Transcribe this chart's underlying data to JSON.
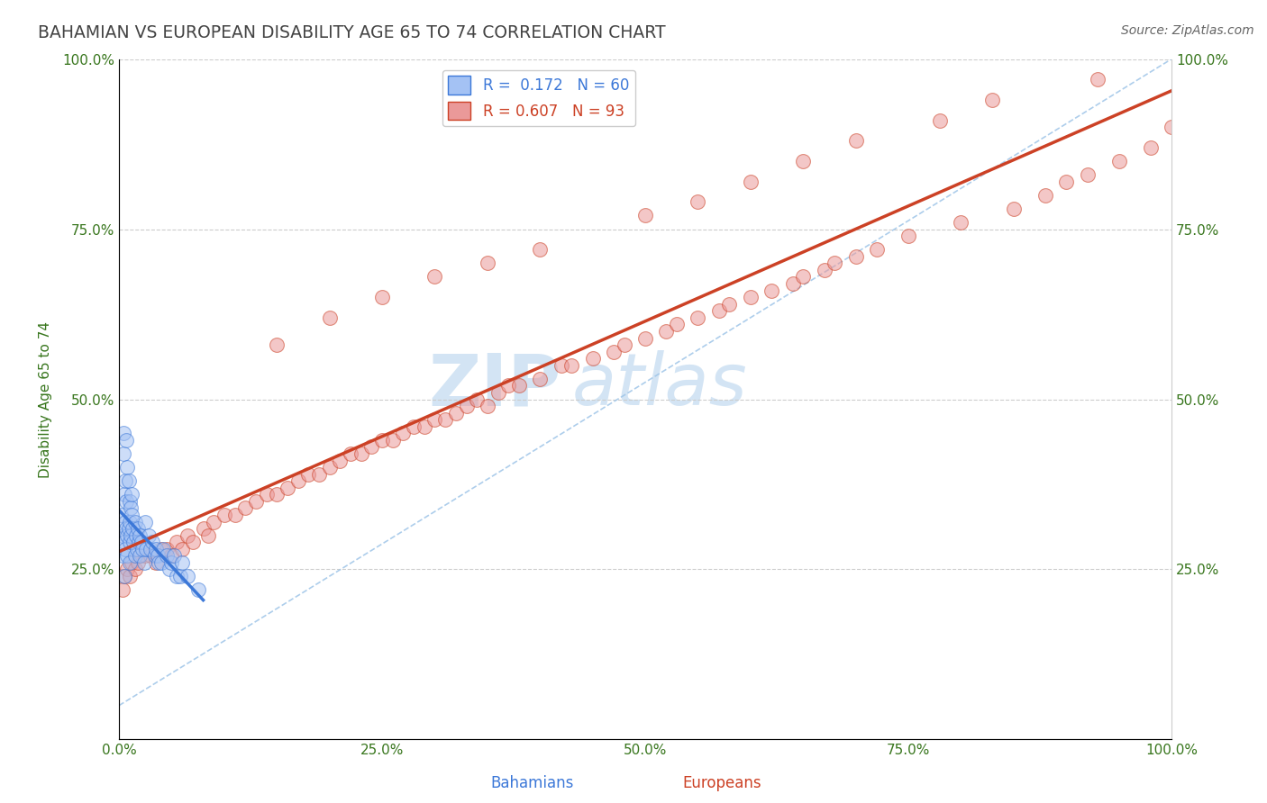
{
  "title": "BAHAMIAN VS EUROPEAN DISABILITY AGE 65 TO 74 CORRELATION CHART",
  "source": "Source: ZipAtlas.com",
  "ylabel": "Disability Age 65 to 74",
  "x_ticks": [
    0.0,
    25.0,
    50.0,
    75.0,
    100.0
  ],
  "x_tick_labels": [
    "0.0%",
    "25.0%",
    "50.0%",
    "75.0%",
    "100.0%"
  ],
  "y_ticks": [
    0.0,
    25.0,
    50.0,
    75.0,
    100.0
  ],
  "y_tick_labels_left": [
    "",
    "25.0%",
    "50.0%",
    "75.0%",
    "100.0%"
  ],
  "y_tick_labels_right": [
    "",
    "25.0%",
    "50.0%",
    "75.0%",
    "100.0%"
  ],
  "xlim": [
    0,
    100
  ],
  "ylim": [
    0,
    100
  ],
  "legend_labels": [
    "Bahamians",
    "Europeans"
  ],
  "r_bahamian": 0.172,
  "n_bahamian": 60,
  "r_european": 0.607,
  "n_european": 93,
  "blue_color": "#a4c2f4",
  "pink_color": "#ea9999",
  "blue_line_color": "#3c78d8",
  "pink_line_color": "#cc4125",
  "ref_line_color": "#9fc5e8",
  "watermark_text": "ZIPatlas",
  "watermark_color": "#cfe2f3",
  "grid_color": "#cccccc",
  "title_color": "#434343",
  "tick_color": "#38761d",
  "source_color": "#666666",
  "bahamian_x": [
    0.2,
    0.3,
    0.3,
    0.4,
    0.4,
    0.5,
    0.5,
    0.5,
    0.6,
    0.6,
    0.6,
    0.7,
    0.7,
    0.7,
    0.8,
    0.8,
    0.8,
    0.9,
    0.9,
    1.0,
    1.0,
    1.0,
    1.0,
    1.1,
    1.1,
    1.2,
    1.2,
    1.3,
    1.4,
    1.5,
    1.5,
    1.6,
    1.7,
    1.8,
    1.9,
    2.0,
    2.0,
    2.1,
    2.2,
    2.4,
    2.5,
    2.6,
    2.8,
    3.0,
    3.2,
    3.4,
    3.5,
    3.7,
    3.8,
    4.0,
    4.2,
    4.5,
    4.8,
    5.0,
    5.2,
    5.5,
    5.8,
    6.0,
    6.5,
    7.5
  ],
  "bahamian_y": [
    33,
    30,
    27,
    45,
    42,
    36,
    29,
    24,
    32,
    28,
    38,
    35,
    31,
    44,
    30,
    27,
    40,
    31,
    38,
    32,
    29,
    26,
    35,
    30,
    34,
    33,
    36,
    31,
    29,
    27,
    32,
    30,
    28,
    31,
    29,
    30,
    27,
    29,
    28,
    26,
    32,
    28,
    30,
    28,
    29,
    27,
    28,
    27,
    26,
    26,
    28,
    27,
    25,
    26,
    27,
    24,
    24,
    26,
    24,
    22
  ],
  "european_x": [
    0.3,
    0.5,
    0.8,
    1.0,
    1.2,
    1.5,
    1.8,
    2.0,
    2.5,
    3.0,
    3.5,
    4.0,
    4.5,
    5.0,
    5.5,
    6.0,
    6.5,
    7.0,
    8.0,
    8.5,
    9.0,
    10.0,
    11.0,
    12.0,
    13.0,
    14.0,
    15.0,
    16.0,
    17.0,
    18.0,
    19.0,
    20.0,
    21.0,
    22.0,
    23.0,
    24.0,
    25.0,
    26.0,
    27.0,
    28.0,
    29.0,
    30.0,
    31.0,
    32.0,
    33.0,
    34.0,
    35.0,
    36.0,
    37.0,
    38.0,
    40.0,
    42.0,
    43.0,
    45.0,
    47.0,
    48.0,
    50.0,
    52.0,
    53.0,
    55.0,
    57.0,
    58.0,
    60.0,
    62.0,
    64.0,
    65.0,
    67.0,
    68.0,
    70.0,
    72.0,
    75.0,
    80.0,
    85.0,
    88.0,
    90.0,
    92.0,
    95.0,
    98.0,
    100.0,
    15.0,
    20.0,
    25.0,
    30.0,
    35.0,
    40.0,
    50.0,
    55.0,
    60.0,
    65.0,
    70.0,
    78.0,
    83.0,
    93.0
  ],
  "european_y": [
    22,
    24,
    25,
    24,
    26,
    25,
    26,
    27,
    27,
    27,
    26,
    28,
    28,
    27,
    29,
    28,
    30,
    29,
    31,
    30,
    32,
    33,
    33,
    34,
    35,
    36,
    36,
    37,
    38,
    39,
    39,
    40,
    41,
    42,
    42,
    43,
    44,
    44,
    45,
    46,
    46,
    47,
    47,
    48,
    49,
    50,
    49,
    51,
    52,
    52,
    53,
    55,
    55,
    56,
    57,
    58,
    59,
    60,
    61,
    62,
    63,
    64,
    65,
    66,
    67,
    68,
    69,
    70,
    71,
    72,
    74,
    76,
    78,
    80,
    82,
    83,
    85,
    87,
    90,
    58,
    62,
    65,
    68,
    70,
    72,
    77,
    79,
    82,
    85,
    88,
    91,
    94,
    97
  ]
}
